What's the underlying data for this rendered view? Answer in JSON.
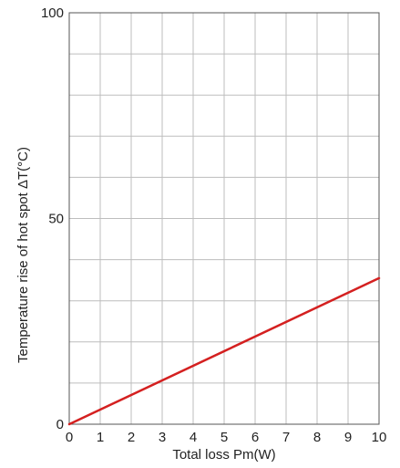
{
  "chart_data": {
    "type": "line",
    "title": "",
    "xlabel": "Total loss Pm(W)",
    "ylabel": "Temperature rise of hot spot ΔT(°C)",
    "xlim": [
      0,
      10
    ],
    "ylim": [
      0,
      100
    ],
    "x_ticks": [
      "0",
      "1",
      "2",
      "3",
      "4",
      "5",
      "6",
      "7",
      "8",
      "9",
      "10"
    ],
    "y_ticks": [
      "0",
      "50",
      "100"
    ],
    "grid": true,
    "x_grid_step": 1,
    "y_grid_step": 10,
    "series": [
      {
        "x": [
          0,
          10
        ],
        "y": [
          0,
          35.5
        ],
        "color": "#d42020"
      }
    ]
  }
}
